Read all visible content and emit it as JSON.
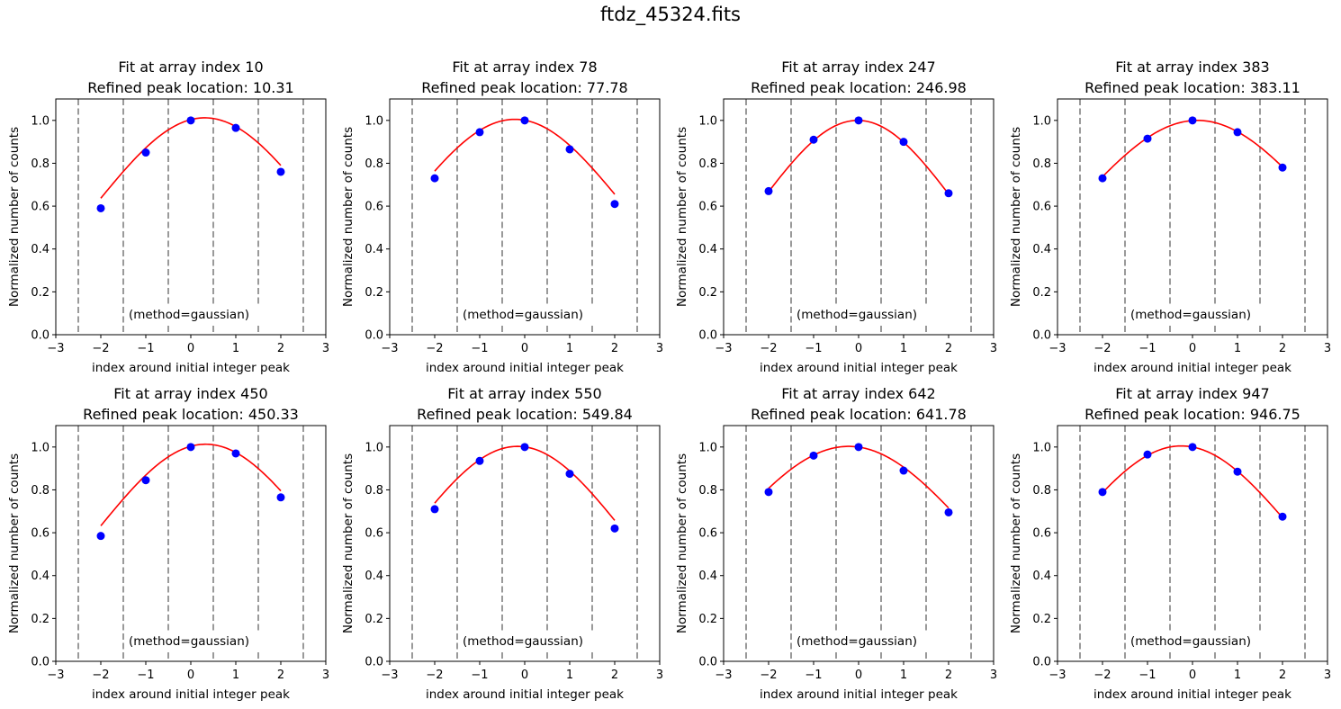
{
  "figure": {
    "suptitle": "ftdz_45324.fits"
  },
  "colors": {
    "curve": "#ff0000",
    "points": "#0000ff",
    "divider": "#808080",
    "axes": "#000000",
    "background": "#ffffff"
  },
  "chart_data": [
    {
      "type": "scatter",
      "title_line1": "Fit at array index 10",
      "title_line2": "Refined peak location: 10.31",
      "xlabel": "index around initial integer peak",
      "ylabel": "Normalized number of counts",
      "xlim": [
        -3,
        3
      ],
      "ylim": [
        0,
        1.1
      ],
      "xticks": [
        "−3",
        "−2",
        "−1",
        "0",
        "1",
        "2",
        "3"
      ],
      "yticks": [
        "0.0",
        "0.2",
        "0.4",
        "0.6",
        "0.8",
        "1.0"
      ],
      "vlines": [
        -2.5,
        -1.5,
        -0.5,
        0.5,
        1.5,
        2.5
      ],
      "points": {
        "x": [
          -2,
          -1,
          0,
          1,
          2
        ],
        "y": [
          0.59,
          0.85,
          1.0,
          0.965,
          0.76
        ]
      },
      "fit": {
        "mu": 0.31,
        "amplitude": 1.012,
        "sigma": 2.4
      },
      "annotation": "(method=gaussian)"
    },
    {
      "type": "scatter",
      "title_line1": "Fit at array index 78",
      "title_line2": "Refined peak location: 77.78",
      "xlabel": "index around initial integer peak",
      "ylabel": "Normalized number of counts",
      "xlim": [
        -3,
        3
      ],
      "ylim": [
        0,
        1.1
      ],
      "xticks": [
        "−3",
        "−2",
        "−1",
        "0",
        "1",
        "2",
        "3"
      ],
      "yticks": [
        "0.0",
        "0.2",
        "0.4",
        "0.6",
        "0.8",
        "1.0"
      ],
      "vlines": [
        -2.5,
        -1.5,
        -0.5,
        0.5,
        1.5,
        2.5
      ],
      "points": {
        "x": [
          -2,
          -1,
          0,
          1,
          2
        ],
        "y": [
          0.73,
          0.945,
          1.0,
          0.865,
          0.61
        ]
      },
      "fit": {
        "mu": -0.22,
        "amplitude": 1.005,
        "sigma": 2.4
      },
      "annotation": "(method=gaussian)"
    },
    {
      "type": "scatter",
      "title_line1": "Fit at array index 247",
      "title_line2": "Refined peak location: 246.98",
      "xlabel": "index around initial integer peak",
      "ylabel": "Normalized number of counts",
      "xlim": [
        -3,
        3
      ],
      "ylim": [
        0,
        1.1
      ],
      "xticks": [
        "−3",
        "−2",
        "−1",
        "0",
        "1",
        "2",
        "3"
      ],
      "yticks": [
        "0.0",
        "0.2",
        "0.4",
        "0.6",
        "0.8",
        "1.0"
      ],
      "vlines": [
        -2.5,
        -1.5,
        -0.5,
        0.5,
        1.5,
        2.5
      ],
      "points": {
        "x": [
          -2,
          -1,
          0,
          1,
          2
        ],
        "y": [
          0.67,
          0.91,
          1.0,
          0.9,
          0.66
        ]
      },
      "fit": {
        "mu": -0.02,
        "amplitude": 1.0,
        "sigma": 2.2
      },
      "annotation": "(method=gaussian)"
    },
    {
      "type": "scatter",
      "title_line1": "Fit at array index 383",
      "title_line2": "Refined peak location: 383.11",
      "xlabel": "index around initial integer peak",
      "ylabel": "Normalized number of counts",
      "xlim": [
        -3,
        3
      ],
      "ylim": [
        0,
        1.1
      ],
      "xticks": [
        "−3",
        "−2",
        "−1",
        "0",
        "1",
        "2",
        "3"
      ],
      "yticks": [
        "0.0",
        "0.2",
        "0.4",
        "0.6",
        "0.8",
        "1.0"
      ],
      "vlines": [
        -2.5,
        -1.5,
        -0.5,
        0.5,
        1.5,
        2.5
      ],
      "points": {
        "x": [
          -2,
          -1,
          0,
          1,
          2
        ],
        "y": [
          0.73,
          0.915,
          1.0,
          0.945,
          0.78
        ]
      },
      "fit": {
        "mu": 0.11,
        "amplitude": 1.0,
        "sigma": 2.7
      },
      "annotation": "(method=gaussian)"
    },
    {
      "type": "scatter",
      "title_line1": "Fit at array index 450",
      "title_line2": "Refined peak location: 450.33",
      "xlabel": "index around initial integer peak",
      "ylabel": "Normalized number of counts",
      "xlim": [
        -3,
        3
      ],
      "ylim": [
        0,
        1.1
      ],
      "xticks": [
        "−3",
        "−2",
        "−1",
        "0",
        "1",
        "2",
        "3"
      ],
      "yticks": [
        "0.0",
        "0.2",
        "0.4",
        "0.6",
        "0.8",
        "1.0"
      ],
      "vlines": [
        -2.5,
        -1.5,
        -0.5,
        0.5,
        1.5,
        2.5
      ],
      "points": {
        "x": [
          -2,
          -1,
          0,
          1,
          2
        ],
        "y": [
          0.585,
          0.845,
          1.0,
          0.97,
          0.765
        ]
      },
      "fit": {
        "mu": 0.33,
        "amplitude": 1.013,
        "sigma": 2.4
      },
      "annotation": "(method=gaussian)"
    },
    {
      "type": "scatter",
      "title_line1": "Fit at array index 550",
      "title_line2": "Refined peak location: 549.84",
      "xlabel": "index around initial integer peak",
      "ylabel": "Normalized number of counts",
      "xlim": [
        -3,
        3
      ],
      "ylim": [
        0,
        1.1
      ],
      "xticks": [
        "−3",
        "−2",
        "−1",
        "0",
        "1",
        "2",
        "3"
      ],
      "yticks": [
        "0.0",
        "0.2",
        "0.4",
        "0.6",
        "0.8",
        "1.0"
      ],
      "vlines": [
        -2.5,
        -1.5,
        -0.5,
        0.5,
        1.5,
        2.5
      ],
      "points": {
        "x": [
          -2,
          -1,
          0,
          1,
          2
        ],
        "y": [
          0.71,
          0.935,
          1.0,
          0.875,
          0.62
        ]
      },
      "fit": {
        "mu": -0.16,
        "amplitude": 1.003,
        "sigma": 2.35
      },
      "annotation": "(method=gaussian)"
    },
    {
      "type": "scatter",
      "title_line1": "Fit at array index 642",
      "title_line2": "Refined peak location: 641.78",
      "xlabel": "index around initial integer peak",
      "ylabel": "Normalized number of counts",
      "xlim": [
        -3,
        3
      ],
      "ylim": [
        0,
        1.1
      ],
      "xticks": [
        "−3",
        "−2",
        "−1",
        "0",
        "1",
        "2",
        "3"
      ],
      "yticks": [
        "0.0",
        "0.2",
        "0.4",
        "0.6",
        "0.8",
        "1.0"
      ],
      "vlines": [
        -2.5,
        -1.5,
        -0.5,
        0.5,
        1.5,
        2.5
      ],
      "points": {
        "x": [
          -2,
          -1,
          0,
          1,
          2
        ],
        "y": [
          0.79,
          0.96,
          1.0,
          0.89,
          0.695
        ]
      },
      "fit": {
        "mu": -0.22,
        "amplitude": 1.003,
        "sigma": 2.7
      },
      "annotation": "(method=gaussian)"
    },
    {
      "type": "scatter",
      "title_line1": "Fit at array index 947",
      "title_line2": "Refined peak location: 946.75",
      "xlabel": "index around initial integer peak",
      "ylabel": "Normalized number of counts",
      "xlim": [
        -3,
        3
      ],
      "ylim": [
        0,
        1.1
      ],
      "xticks": [
        "−3",
        "−2",
        "−1",
        "0",
        "1",
        "2",
        "3"
      ],
      "yticks": [
        "0.0",
        "0.2",
        "0.4",
        "0.6",
        "0.8",
        "1.0"
      ],
      "vlines": [
        -2.5,
        -1.5,
        -0.5,
        0.5,
        1.5,
        2.5
      ],
      "points": {
        "x": [
          -2,
          -1,
          0,
          1,
          2
        ],
        "y": [
          0.79,
          0.965,
          1.0,
          0.885,
          0.675
        ]
      },
      "fit": {
        "mu": -0.25,
        "amplitude": 1.005,
        "sigma": 2.5
      },
      "annotation": "(method=gaussian)"
    }
  ]
}
